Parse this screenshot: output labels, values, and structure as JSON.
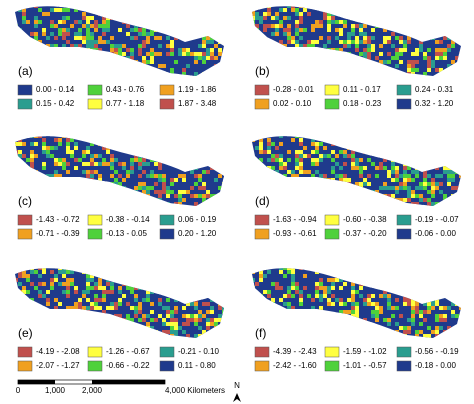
{
  "panels": [
    {
      "label": "(a)",
      "legend": [
        {
          "label": "0.00 - 0.14",
          "color": "#1f3a8c"
        },
        {
          "label": "0.43 - 0.76",
          "color": "#4fd13b"
        },
        {
          "label": "1.19 - 1.86",
          "color": "#f0a020"
        },
        {
          "label": "0.15 - 0.42",
          "color": "#2a9d8f"
        },
        {
          "label": "0.77 - 1.18",
          "color": "#ffff40"
        },
        {
          "label": "1.87 - 3.48",
          "color": "#c0504d"
        }
      ]
    },
    {
      "label": "(b)",
      "legend": [
        {
          "label": "-0.28 - 0.01",
          "color": "#c0504d"
        },
        {
          "label": "0.11 - 0.17",
          "color": "#ffff40"
        },
        {
          "label": "0.24 - 0.31",
          "color": "#2a9d8f"
        },
        {
          "label": "0.02 - 0.10",
          "color": "#f0a020"
        },
        {
          "label": "0.18 - 0.23",
          "color": "#4fd13b"
        },
        {
          "label": "0.32 - 1.20",
          "color": "#1f3a8c"
        }
      ]
    },
    {
      "label": "(c)",
      "legend": [
        {
          "label": "-1.43 - -0.72",
          "color": "#c0504d"
        },
        {
          "label": "-0.38 - -0.14",
          "color": "#ffff40"
        },
        {
          "label": "0.06 - 0.19",
          "color": "#2a9d8f"
        },
        {
          "label": "-0.71 - -0.39",
          "color": "#f0a020"
        },
        {
          "label": "-0.13 - 0.05",
          "color": "#4fd13b"
        },
        {
          "label": "0.20 - 1.20",
          "color": "#1f3a8c"
        }
      ]
    },
    {
      "label": "(d)",
      "legend": [
        {
          "label": "-1.63 - -0.94",
          "color": "#c0504d"
        },
        {
          "label": "-0.60 - -0.38",
          "color": "#ffff40"
        },
        {
          "label": "-0.19 - -0.07",
          "color": "#2a9d8f"
        },
        {
          "label": "-0.93 - -0.61",
          "color": "#f0a020"
        },
        {
          "label": "-0.37 - -0.20",
          "color": "#4fd13b"
        },
        {
          "label": "-0.06 - 0.00",
          "color": "#1f3a8c"
        }
      ]
    },
    {
      "label": "(e)",
      "legend": [
        {
          "label": "-4.19 - -2.08",
          "color": "#c0504d"
        },
        {
          "label": "-1.26 - -0.67",
          "color": "#ffff40"
        },
        {
          "label": "-0.21 - 0.10",
          "color": "#2a9d8f"
        },
        {
          "label": "-2.07 - -1.27",
          "color": "#f0a020"
        },
        {
          "label": "-0.66 - -0.22",
          "color": "#4fd13b"
        },
        {
          "label": "0.11 - 0.80",
          "color": "#1f3a8c"
        }
      ]
    },
    {
      "label": "(f)",
      "legend": [
        {
          "label": "-4.39 - -2.43",
          "color": "#c0504d"
        },
        {
          "label": "-1.59 - -1.02",
          "color": "#ffff40"
        },
        {
          "label": "-0.56 - -0.19",
          "color": "#2a9d8f"
        },
        {
          "label": "-2.42 - -1.60",
          "color": "#f0a020"
        },
        {
          "label": "-1.01 - -0.57",
          "color": "#4fd13b"
        },
        {
          "label": "-0.18 - 0.00",
          "color": "#1f3a8c"
        }
      ]
    }
  ],
  "scale_bar": {
    "ticks": [
      "0",
      "1,000",
      "2,000",
      "4,000 Kilometers"
    ]
  },
  "north_arrow": "N"
}
